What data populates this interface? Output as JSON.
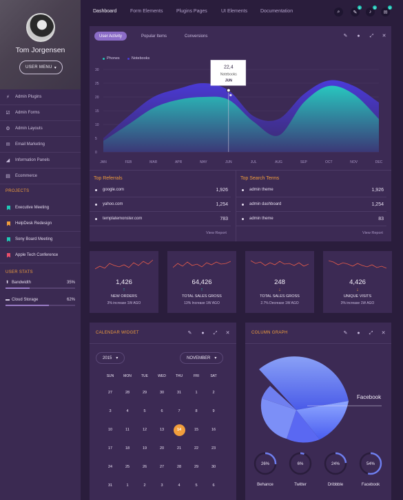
{
  "sidebar": {
    "user_name": "Tom Jorgensen",
    "user_menu_label": "USER MENU",
    "menu": [
      {
        "label": "Admin Plugins",
        "icon": "plug-icon"
      },
      {
        "label": "Admin Forms",
        "icon": "check-square-icon"
      },
      {
        "label": "Admin Layouts",
        "icon": "gear-icon"
      },
      {
        "label": "Email Marketing",
        "icon": "envelope-icon"
      },
      {
        "label": "Information Panels",
        "icon": "chart-icon"
      },
      {
        "label": "Ecommerce",
        "icon": "cart-icon"
      }
    ],
    "projects_title": "PROJECTS",
    "projects": [
      {
        "label": "Executive Meeting",
        "color": "#1fc9b7"
      },
      {
        "label": "HelpDesk Redesign",
        "color": "#f29e3c"
      },
      {
        "label": "Sony Board Meeting",
        "color": "#1fc9b7"
      },
      {
        "label": "Apple Tech Conference",
        "color": "#ea4f6b"
      }
    ],
    "user_stats_title": "USER STATS",
    "stats": [
      {
        "label": "Bandwidth",
        "value": "35%",
        "fraction": 0.35,
        "icon": "upload-icon"
      },
      {
        "label": "Cloud Storage",
        "value": "62%",
        "fraction": 0.62,
        "icon": "drive-icon"
      }
    ]
  },
  "topnav": {
    "links": [
      "Dashboard",
      "Form Elements",
      "Plugins Pages",
      "UI Elements",
      "Documentation"
    ],
    "active": "Dashboard",
    "icons": [
      {
        "name": "search-icon",
        "badge": ""
      },
      {
        "name": "wand-icon",
        "badge": "2"
      },
      {
        "name": "bell-icon",
        "badge": "3"
      },
      {
        "name": "chat-icon",
        "badge": "2"
      }
    ]
  },
  "activity": {
    "tabs": [
      "User Activity",
      "Popular Items",
      "Conversions"
    ],
    "active_tab": "User Activity",
    "tooltip": {
      "value": "22,4",
      "series": "Notebooks",
      "month": "JUN"
    }
  },
  "chart_data": {
    "type": "area",
    "categories": [
      "JAN",
      "FEB",
      "MAR",
      "APR",
      "MAY",
      "JUN",
      "JUL",
      "AUG",
      "SEP",
      "OCT",
      "NOV",
      "DEC"
    ],
    "y_ticks": [
      0,
      5,
      10,
      15,
      20,
      25,
      30
    ],
    "ylim": [
      0,
      30
    ],
    "legend_position": "top-left",
    "grid": true,
    "series": [
      {
        "name": "Phones",
        "color": "#1fc9b7",
        "values": [
          4,
          10,
          16,
          19,
          20,
          19,
          11,
          6,
          18,
          24,
          21,
          12
        ]
      },
      {
        "name": "Notebooks",
        "color": "#4a3bd6",
        "values": [
          5,
          13,
          20,
          23,
          25,
          22.4,
          13,
          12,
          21,
          26,
          24,
          18
        ]
      }
    ]
  },
  "referrals": {
    "title": "Top Referrals",
    "rows": [
      {
        "label": "google.com",
        "value": "1,926"
      },
      {
        "label": "yahoo.com",
        "value": "1,254"
      },
      {
        "label": "templatemonster.com",
        "value": "783"
      }
    ],
    "link": "View Report"
  },
  "search_terms": {
    "title": "Top Search Terms",
    "rows": [
      {
        "label": "admin theme",
        "value": "1,926"
      },
      {
        "label": "admin dashboard",
        "value": "1,254"
      },
      {
        "label": "admin theme",
        "value": "83"
      }
    ],
    "link": "View Report"
  },
  "stat_cards": [
    {
      "value": "1,426",
      "label": "NEW ORDERS",
      "sub": "3% increase 1W AGO",
      "direction": "up",
      "color": "#1fc9b7"
    },
    {
      "value": "64,426",
      "label": "TOTAL SALES GROSS",
      "sub": "13% Increase 1W AGO",
      "direction": "up",
      "color": "#1fc9b7"
    },
    {
      "value": "248",
      "label": "TOTAL SALES GROSS",
      "sub": "2.7% Decrease 1W AGO",
      "direction": "down",
      "color": "#f29e3c"
    },
    {
      "value": "4,426",
      "label": "UNIQUE VISITS",
      "sub": "3% increase 1W AGO",
      "direction": "down",
      "color": "#f29e3c"
    }
  ],
  "calendar": {
    "title": "CALENDAR WIDGET",
    "year": "2015",
    "month": "NOVEMBER",
    "days_of_week": [
      "SUN",
      "MON",
      "TUE",
      "WED",
      "THU",
      "FRI",
      "SAT"
    ],
    "weeks": [
      [
        "27",
        "28",
        "29",
        "30",
        "31",
        "1",
        "2"
      ],
      [
        "3",
        "4",
        "5",
        "6",
        "7",
        "8",
        "9"
      ],
      [
        "10",
        "11",
        "12",
        "13",
        "14",
        "15",
        "16"
      ],
      [
        "17",
        "18",
        "19",
        "20",
        "21",
        "22",
        "23"
      ],
      [
        "24",
        "25",
        "26",
        "27",
        "28",
        "29",
        "30"
      ],
      [
        "31",
        "1",
        "2",
        "3",
        "4",
        "5",
        "6"
      ]
    ],
    "today": "14"
  },
  "column_graph": {
    "title": "COLUMN GRAPH",
    "highlight_label": "Facebook",
    "rings": [
      {
        "label": "Behance",
        "value": "26%",
        "fraction": 0.26
      },
      {
        "label": "Twitter",
        "value": "6%",
        "fraction": 0.06
      },
      {
        "label": "Dribbble",
        "value": "24%",
        "fraction": 0.24
      },
      {
        "label": "Facebook",
        "value": "54%",
        "fraction": 0.54
      }
    ]
  }
}
